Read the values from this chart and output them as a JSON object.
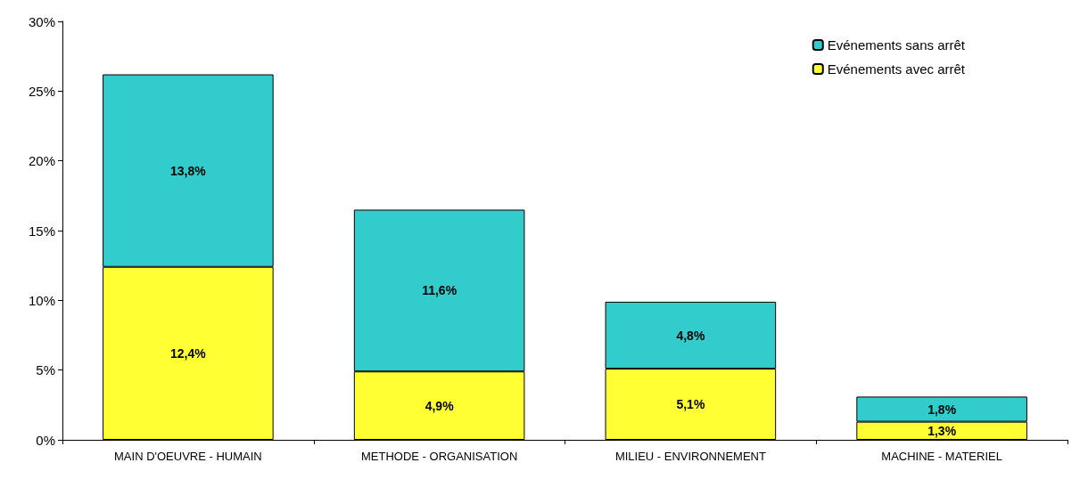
{
  "chart_data": {
    "type": "bar",
    "stacked": true,
    "categories": [
      "MAIN D'OEUVRE - HUMAIN",
      "METHODE - ORGANISATION",
      "MILIEU - ENVIRONNEMENT",
      "MACHINE - MATERIEL"
    ],
    "series": [
      {
        "name": "Evénements avec arrêt",
        "color": "#ffff33",
        "values": [
          12.4,
          4.9,
          5.1,
          1.3
        ],
        "value_labels": [
          "12,4%",
          "4,9%",
          "5,1%",
          "1,3%"
        ]
      },
      {
        "name": "Evénements sans arrêt",
        "color": "#33cccc",
        "values": [
          13.8,
          11.6,
          4.8,
          1.8
        ],
        "value_labels": [
          "13,8%",
          "11,6%",
          "4,8%",
          "1,8%"
        ]
      }
    ],
    "ylim": [
      0,
      30
    ],
    "yticks": [
      {
        "value": 0,
        "label": "0%"
      },
      {
        "value": 5,
        "label": "5%"
      },
      {
        "value": 10,
        "label": "10%"
      },
      {
        "value": 15,
        "label": "15%"
      },
      {
        "value": 20,
        "label": "20%"
      },
      {
        "value": 25,
        "label": "25%"
      },
      {
        "value": 30,
        "label": "30%"
      }
    ],
    "grid": false,
    "legend": "top right"
  }
}
